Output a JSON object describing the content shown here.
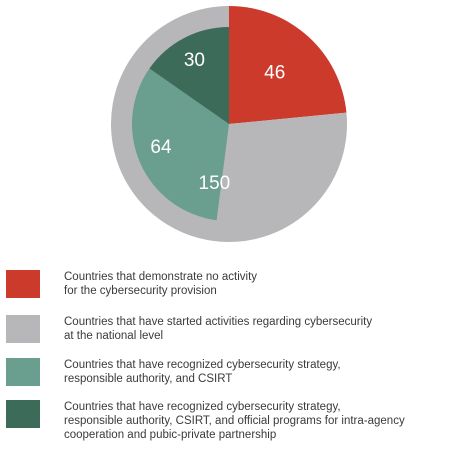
{
  "chart_data": {
    "type": "pie",
    "outer": [
      {
        "label": "Countries that demonstrate no activity for the cybersecurity provision",
        "value": 46,
        "color": "#cc3a2b"
      },
      {
        "label": "Countries that have started activities regarding cybersecurity at the national level",
        "value": 150,
        "color": "#b7b7b9"
      }
    ],
    "nested_within_started": [
      {
        "label": "Countries that have recognized cybersecurity strategy, responsible authority, and CSIRT",
        "value": 64,
        "color": "#6a9e8e"
      },
      {
        "label": "Countries that have recognized cybersecurity strategy, responsible authority, CSIRT, and official programs for intra-agency cooperation and pubic-private partnership",
        "value": 30,
        "color": "#3d6b5a"
      }
    ],
    "slice_labels": [
      "46",
      "150",
      "64",
      "30"
    ]
  },
  "legend": [
    {
      "color": "#cc3a2b",
      "lines": [
        "Countries that demonstrate no activity",
        "for the cybersecurity provision"
      ]
    },
    {
      "color": "#b7b7b9",
      "lines": [
        "Countries that have started activities regarding cybersecurity",
        "at the national level"
      ]
    },
    {
      "color": "#6a9e8e",
      "lines": [
        "Countries that have recognized cybersecurity strategy,",
        "responsible authority, and CSIRT"
      ]
    },
    {
      "color": "#3d6b5a",
      "lines": [
        "Countries that have recognized cybersecurity strategy,",
        "responsible authority, CSIRT, and official programs for intra-agency",
        "cooperation and pubic-private partnership"
      ]
    }
  ]
}
